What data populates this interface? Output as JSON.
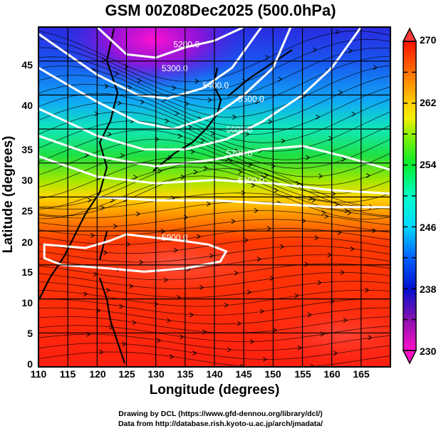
{
  "title": "GSM 00Z08Dec2025 (500.0hPa)",
  "chart_data": {
    "type": "heatmap",
    "title": "GSM 00Z08Dec2025 (500.0hPa)",
    "xlabel": "Longitude (degrees)",
    "ylabel": "Latitude  (degrees)",
    "xlim": [
      110,
      170
    ],
    "ylim": [
      0,
      50
    ],
    "grid": true,
    "x_ticks": [
      "110",
      "115",
      "120",
      "125",
      "130",
      "135",
      "140",
      "145",
      "150",
      "155",
      "160",
      "165"
    ],
    "y_ticks": [
      "0",
      "5",
      "10",
      "15",
      "20",
      "25",
      "30",
      "35",
      "40",
      "45"
    ],
    "colorbar": {
      "ticks": [
        "230",
        "238",
        "246",
        "254",
        "262",
        "270"
      ],
      "range": [
        230,
        270
      ],
      "placement": "right",
      "colors": [
        "#ff00cc",
        "#8800aa",
        "#0000ee",
        "#0055ff",
        "#00ccff",
        "#00ffcc",
        "#00ee33",
        "#88ee00",
        "#ffee00",
        "#ff9900",
        "#ff3300",
        "#ff0000"
      ]
    },
    "contours": [
      {
        "label": "5200.0",
        "value": 5200
      },
      {
        "label": "5300.0",
        "value": 5300
      },
      {
        "label": "5400.0",
        "value": 5400
      },
      {
        "label": "5500.0",
        "value": 5500
      },
      {
        "label": "5600.0",
        "value": 5600
      },
      {
        "label": "5700.0",
        "value": 5700
      },
      {
        "label": "5800.0",
        "value": 5800
      },
      {
        "label": "5900.0",
        "value": 5900
      }
    ]
  },
  "credits": {
    "line1": "Drawing by DCL (https://www.gfd-dennou.org/library/dcl/)",
    "line2": "Data from http://database.rish.kyoto-u.ac.jp/arch/jmadata/"
  }
}
